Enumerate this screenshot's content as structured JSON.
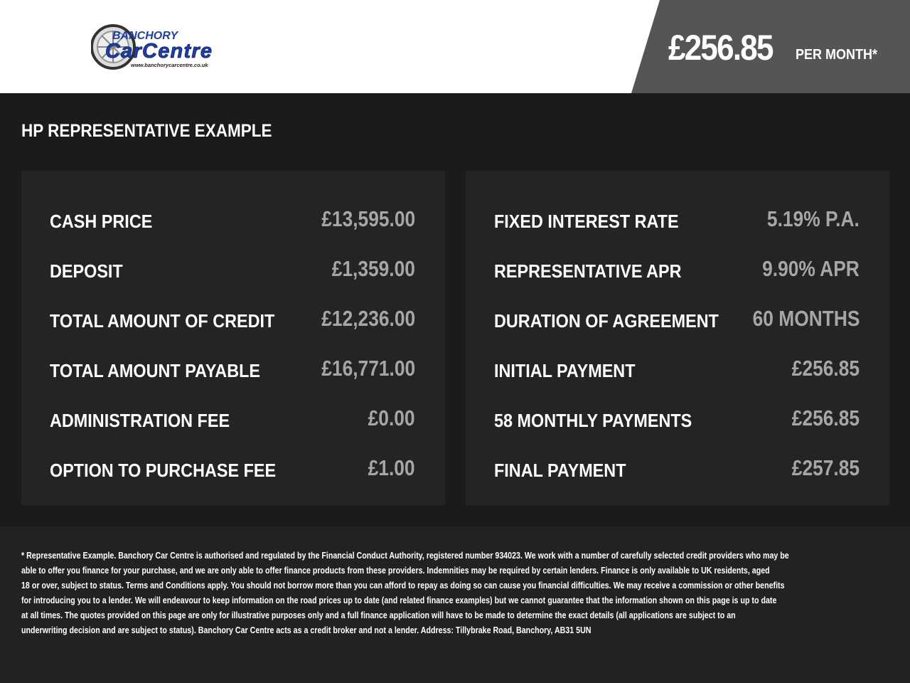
{
  "header": {
    "logo": {
      "text_top": "BANCHORY",
      "text_main": "CarCentre",
      "url": "www.banchorycarcentre.co.uk",
      "colors": {
        "blue": "#1f3fa8",
        "grey": "#777777"
      }
    },
    "monthly_price": "£256.85",
    "per_month_label": "PER MONTH*"
  },
  "title": "HP REPRESENTATIVE EXAMPLE",
  "left_panel": [
    {
      "label": "CASH PRICE",
      "value": "£13,595.00"
    },
    {
      "label": "DEPOSIT",
      "value": "£1,359.00"
    },
    {
      "label": "TOTAL AMOUNT OF CREDIT",
      "value": "£12,236.00"
    },
    {
      "label": "TOTAL AMOUNT PAYABLE",
      "value": "£16,771.00"
    },
    {
      "label": "ADMINISTRATION FEE",
      "value": "£0.00"
    },
    {
      "label": "OPTION TO PURCHASE FEE",
      "value": "£1.00"
    }
  ],
  "right_panel": [
    {
      "label": "FIXED INTEREST RATE",
      "value": "5.19% P.A."
    },
    {
      "label": "REPRESENTATIVE APR",
      "value": "9.90% APR"
    },
    {
      "label": "DURATION OF AGREEMENT",
      "value": "60 MONTHS"
    },
    {
      "label": "INITIAL PAYMENT",
      "value": "£256.85"
    },
    {
      "label": "58 MONTHLY PAYMENTS",
      "value": "£256.85"
    },
    {
      "label": "FINAL PAYMENT",
      "value": "£257.85"
    }
  ],
  "disclaimer_lines": [
    "* Representative Example. Banchory Car Centre is authorised and regulated by the Financial Conduct Authority, registered number 934023. We work with a number of carefully selected credit providers who may be",
    "able to offer you finance for your purchase, and we are only able to offer finance products from these providers. Indemnities may be required by certain lenders. Finance is only available to UK residents, aged",
    "18 or over, subject to status. Terms and Conditions apply. You should not borrow more than you can afford to repay as doing so can cause you financial difficulties. We may receive a commission or other benefits",
    "for introducing you to a lender. We will endeavour to keep information on the road prices up to date (and related finance examples) but we cannot guarantee that the information shown on this page is up to date",
    "at all times. The quotes provided on this page are only for illustrative purposes only and a full finance application will have to be made to determine the exact details (all applications are subject to an",
    "underwriting decision and are subject to status). Banchory Car Centre acts as a credit broker and not a lender. Address: Tillybrake Road, Banchory, AB31 5UN"
  ]
}
